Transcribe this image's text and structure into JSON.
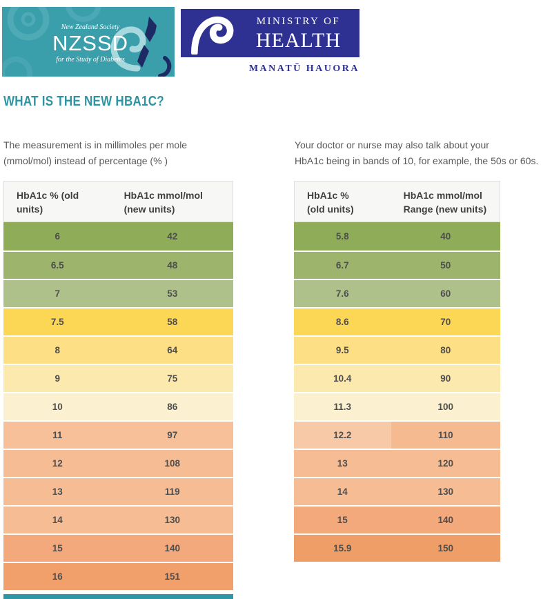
{
  "logos": {
    "nzssd": {
      "bg_color": "#3b9eab",
      "line1": "New Zealand Society",
      "name": "NZSSD",
      "line2": "for the Study of Diabetes"
    },
    "moh": {
      "bg_color": "#2e3192",
      "line1": "MINISTRY OF",
      "line2": "HEALTH",
      "subtitle": "MANATŪ HAUORA"
    }
  },
  "heading": {
    "text": "WHAT IS THE NEW HBA1C?",
    "color": "#2e93a2"
  },
  "intro_left": {
    "line1": "The measurement is in millimoles per mole",
    "line2": "(mmol/mol) instead of percentage (% )"
  },
  "intro_right": {
    "line1": "Your doctor or nurse may also talk about your",
    "line2": "HbA1c being in bands of 10, for example, the 50s or 60s."
  },
  "left_table": {
    "header1": "HbA1c % (old\nunits)",
    "header2": "HbA1c mmol/mol\n(new units)",
    "rows": [
      {
        "old": "6",
        "new": "42",
        "color": "#8fad58"
      },
      {
        "old": "6.5",
        "new": "48",
        "color": "#9cb46b"
      },
      {
        "old": "7",
        "new": "53",
        "color": "#afc18b"
      },
      {
        "old": "7.5",
        "new": "58",
        "color": "#fcd756"
      },
      {
        "old": "8",
        "new": "64",
        "color": "#fde085"
      },
      {
        "old": "9",
        "new": "75",
        "color": "#fce9ae"
      },
      {
        "old": "10",
        "new": "86",
        "color": "#fbf1d0"
      },
      {
        "old": "11",
        "new": "97",
        "color": "#f7c098"
      },
      {
        "old": "12",
        "new": "108",
        "color": "#f6bd94"
      },
      {
        "old": "13",
        "new": "119",
        "color": "#f6bd94"
      },
      {
        "old": "14",
        "new": "130",
        "color": "#f6bd94"
      },
      {
        "old": "15",
        "new": "140",
        "color": "#f3a97b"
      },
      {
        "old": "16",
        "new": "151",
        "color": "#f1a06c"
      }
    ]
  },
  "right_table": {
    "header1": "HbA1c %\n(old units)",
    "header2": "HbA1c mmol/mol\nRange (new units)",
    "rows": [
      {
        "old": "5.8",
        "new": "40",
        "color": "#8fad58"
      },
      {
        "old": "6.7",
        "new": "50",
        "color": "#9cb46b"
      },
      {
        "old": "7.6",
        "new": "60",
        "color": "#afc18b"
      },
      {
        "old": "8.6",
        "new": "70",
        "color": "#fcd756"
      },
      {
        "old": "9.5",
        "new": "80",
        "color": "#fde085"
      },
      {
        "old": "10.4",
        "new": "90",
        "color": "#fce9ae"
      },
      {
        "old": "11.3",
        "new": "100",
        "color": "#fbf1d0"
      },
      {
        "old": "12.2",
        "new": "110",
        "c1": "#f8c9a6",
        "c2": "#f5ba90"
      },
      {
        "old": "13",
        "new": "120",
        "color": "#f6bd94"
      },
      {
        "old": "14",
        "new": "130",
        "color": "#f6bd94"
      },
      {
        "old": "15",
        "new": "140",
        "color": "#f3a97b"
      },
      {
        "old": "15.9",
        "new": "150",
        "color": "#f09e68"
      }
    ]
  },
  "next_section_bar_color": "#2e96a4"
}
